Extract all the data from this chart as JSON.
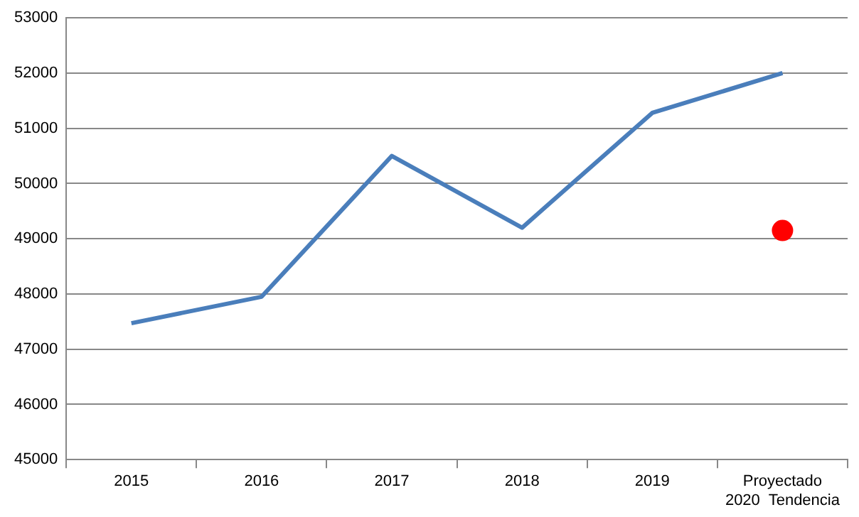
{
  "chart_data": {
    "type": "line",
    "categories": [
      "2015",
      "2016",
      "2017",
      "2018",
      "2019",
      "Proyectado 2020  Tendencia"
    ],
    "series": [
      {
        "color": "#4a7ebb",
        "marker": "none",
        "values": [
          47470,
          47950,
          50500,
          49200,
          51280,
          52000
        ]
      },
      {
        "type": "scatter",
        "color": "#ff0000",
        "marker": "circle",
        "x": [
          "Proyectado 2020  Tendencia"
        ],
        "values": [
          49150
        ]
      }
    ],
    "ylim": [
      45000,
      53000
    ],
    "yticks": [
      45000,
      46000,
      47000,
      48000,
      49000,
      50000,
      51000,
      52000,
      53000
    ],
    "grid": "y",
    "legend": false
  }
}
